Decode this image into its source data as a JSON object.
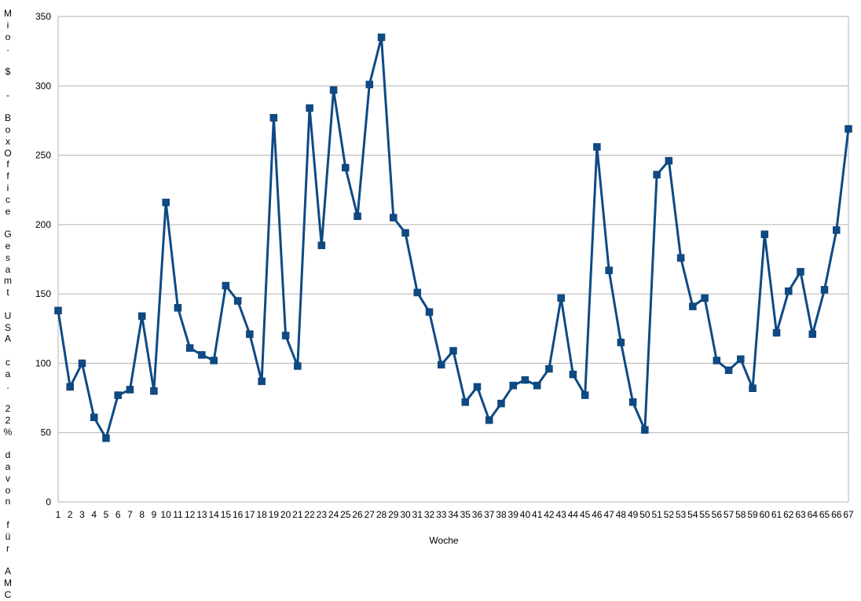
{
  "chart_data": {
    "type": "line",
    "title": "",
    "xlabel": "Woche",
    "ylabel": "Mio. $ - BoxOffice Gesamt USA ca. 22% davon für AMC",
    "ylim": [
      0,
      350
    ],
    "yticks": [
      0,
      50,
      100,
      150,
      200,
      250,
      300,
      350
    ],
    "grid": true,
    "legend": "none",
    "series_color": "#0e4a84",
    "x": [
      1,
      2,
      3,
      4,
      5,
      6,
      7,
      8,
      9,
      10,
      11,
      12,
      13,
      14,
      15,
      16,
      17,
      18,
      19,
      20,
      21,
      22,
      23,
      24,
      25,
      26,
      27,
      28,
      29,
      30,
      31,
      32,
      33,
      34,
      35,
      36,
      37,
      38,
      39,
      40,
      41,
      42,
      43,
      44,
      45,
      46,
      47,
      48,
      49,
      50,
      51,
      52,
      53,
      54,
      55,
      56,
      57,
      58,
      59,
      60,
      61,
      62,
      63,
      64,
      65,
      66,
      67
    ],
    "series": [
      {
        "values": [
          138,
          83,
          100,
          61,
          46,
          77,
          81,
          134,
          80,
          216,
          140,
          111,
          106,
          102,
          156,
          145,
          121,
          87,
          277,
          120,
          98,
          284,
          185,
          297,
          241,
          206,
          301,
          335,
          205,
          194,
          151,
          137,
          99,
          109,
          72,
          83,
          59,
          71,
          84,
          88,
          84,
          96,
          147,
          92,
          77,
          256,
          167,
          115,
          72,
          52,
          236,
          246,
          176,
          141,
          147,
          102,
          95,
          103,
          82,
          193,
          122,
          152,
          166,
          121,
          153,
          196,
          269
        ]
      }
    ]
  }
}
